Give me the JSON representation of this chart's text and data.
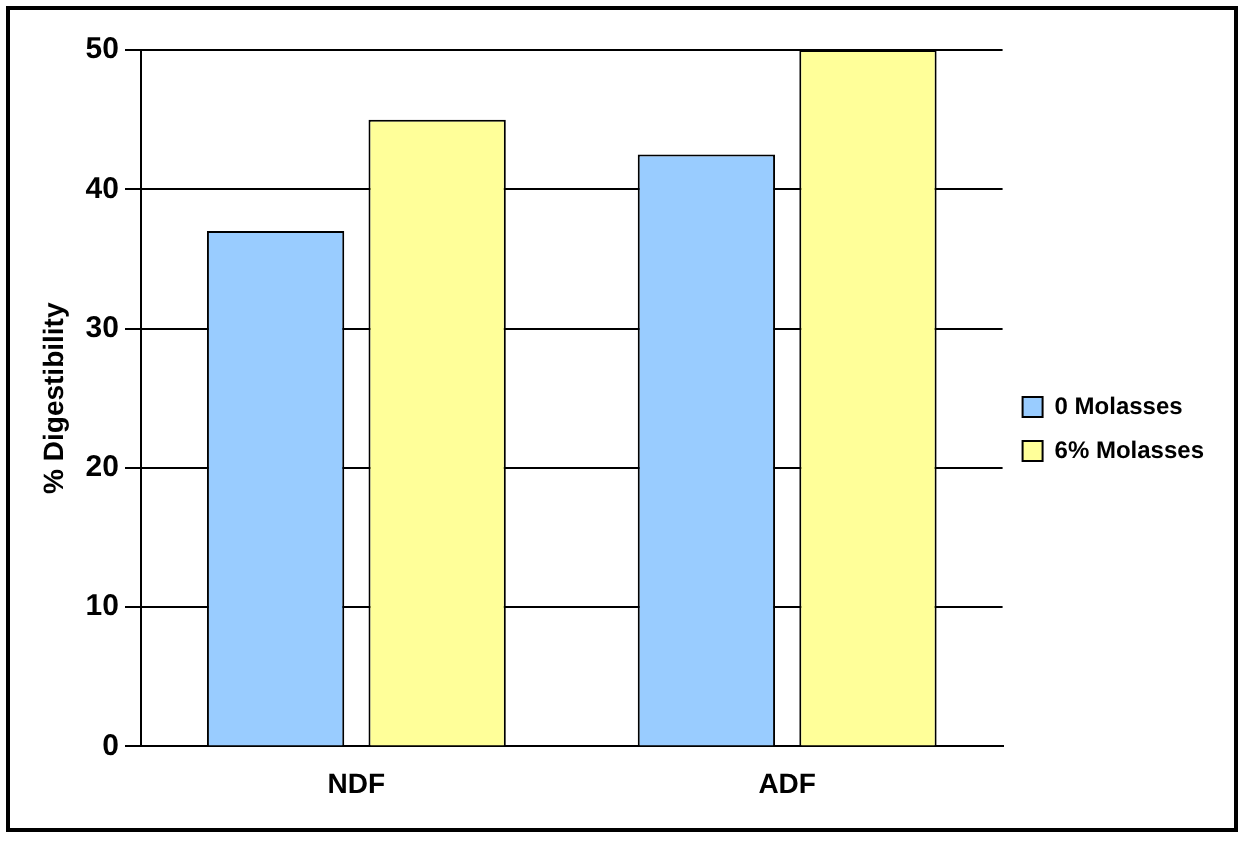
{
  "chart_data": {
    "type": "bar",
    "ylabel": "% Digestibility",
    "categories": [
      "NDF",
      "ADF"
    ],
    "series": [
      {
        "name": "0 Molasses",
        "color": "#99ccff",
        "values": [
          37,
          42.5
        ]
      },
      {
        "name": "6% Molasses",
        "color": "#ffff99",
        "values": [
          45,
          50
        ]
      }
    ],
    "ylim": [
      0,
      50
    ],
    "yticks": [
      0,
      10,
      20,
      30,
      40,
      50
    ],
    "grid": "y",
    "legend": "right"
  }
}
